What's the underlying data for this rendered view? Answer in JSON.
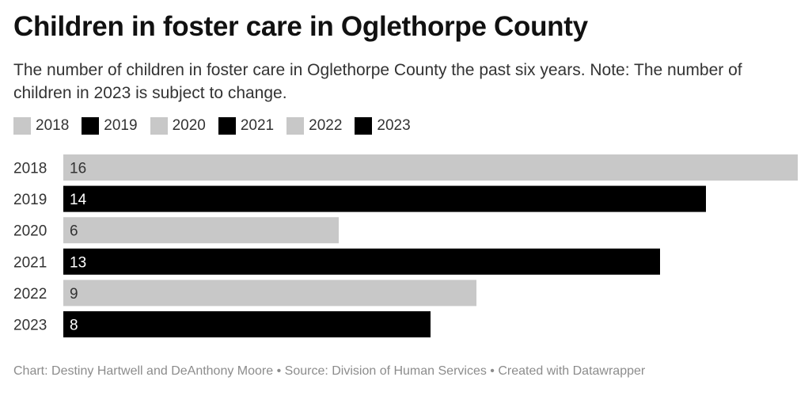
{
  "title": "Children in foster care in Oglethorpe County",
  "subtitle": "The number of children in foster care in Oglethorpe County the past six years. Note: The number of children in 2023 is subject to change.",
  "colors": {
    "light": "#c8c8c8",
    "dark": "#000000",
    "text_dark": "#333333",
    "text_light": "#ffffff"
  },
  "legend": [
    {
      "label": "2018",
      "color": "#c8c8c8"
    },
    {
      "label": "2019",
      "color": "#000000"
    },
    {
      "label": "2020",
      "color": "#c8c8c8"
    },
    {
      "label": "2021",
      "color": "#000000"
    },
    {
      "label": "2022",
      "color": "#c8c8c8"
    },
    {
      "label": "2023",
      "color": "#000000"
    }
  ],
  "chart_data": {
    "type": "bar",
    "orientation": "horizontal",
    "categories": [
      "2018",
      "2019",
      "2020",
      "2021",
      "2022",
      "2023"
    ],
    "values": [
      16,
      14,
      6,
      13,
      9,
      8
    ],
    "colors": [
      "#c8c8c8",
      "#000000",
      "#c8c8c8",
      "#000000",
      "#c8c8c8",
      "#000000"
    ],
    "xlim": [
      0,
      16
    ],
    "grid": false,
    "legend_position": "top-left"
  },
  "footer": "Chart: Destiny Hartwell and DeAnthony Moore • Source: Division of Human Services • Created with Datawrapper"
}
